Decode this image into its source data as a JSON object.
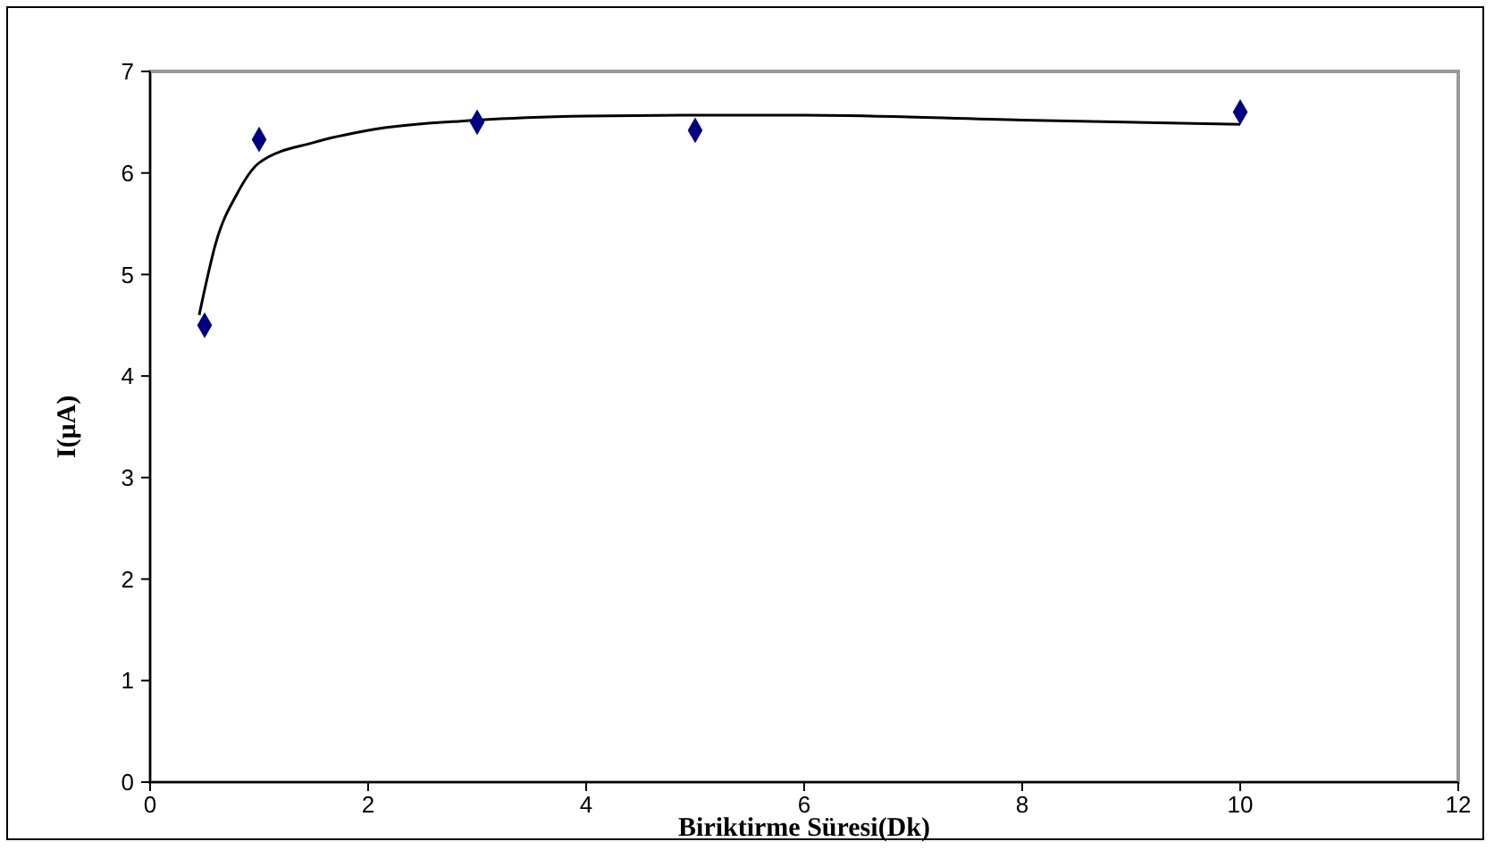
{
  "chart_data": {
    "type": "scatter",
    "xlabel": "Biriktirme Süresi(Dk)",
    "ylabel": "I(μA)",
    "xlim": [
      0,
      12
    ],
    "ylim": [
      0,
      7
    ],
    "xticks": [
      0,
      2,
      4,
      6,
      8,
      10,
      12
    ],
    "yticks": [
      0,
      1,
      2,
      3,
      4,
      5,
      6,
      7
    ],
    "grid": false,
    "marker": "diamond",
    "series": [
      {
        "color": "#000080",
        "x": [
          0.5,
          1,
          3,
          5,
          10
        ],
        "values": [
          4.5,
          6.33,
          6.5,
          6.42,
          6.6
        ]
      },
      {
        "type": "line",
        "color": "#000000",
        "line_style": "solid",
        "marker": "none",
        "x": [
          0.45,
          0.5,
          0.6,
          0.8,
          1,
          1.5,
          2,
          3,
          4,
          5,
          6,
          8,
          10
        ],
        "values": [
          4.6,
          4.85,
          5.3,
          5.8,
          6.1,
          6.3,
          6.42,
          6.52,
          6.56,
          6.57,
          6.57,
          6.52,
          6.48
        ]
      }
    ]
  }
}
